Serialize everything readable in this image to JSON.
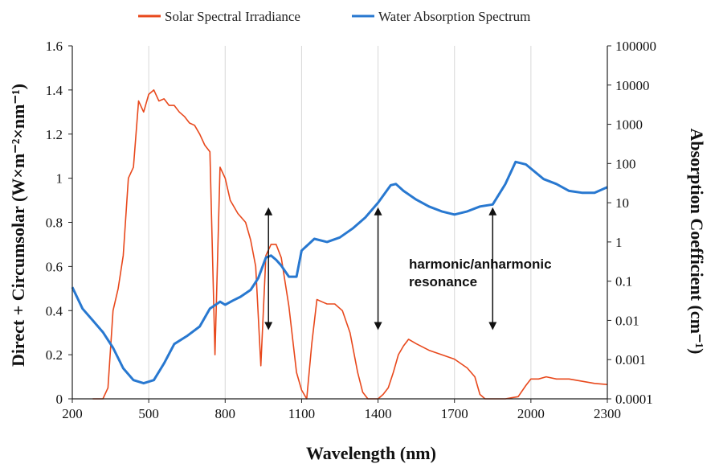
{
  "chart_data": {
    "type": "line",
    "xlabel": "Wavelength (nm)",
    "ylabel_left": "Direct + Circumsolar (W×m⁻²×nm⁻¹)",
    "ylabel_right": "Absorption Coefficient (cm⁻¹)",
    "xlim": [
      200,
      2300
    ],
    "ylim_left": [
      0,
      1.6
    ],
    "ylim_right": [
      0.0001,
      100000
    ],
    "yscale_right": "log",
    "x_ticks": [
      "200",
      "500",
      "800",
      "1100",
      "1400",
      "1700",
      "2000",
      "2300"
    ],
    "y_left_ticks": [
      "0",
      "0.2",
      "0.4",
      "0.6",
      "0.8",
      "1",
      "1.2",
      "1.4",
      "1.6"
    ],
    "y_right_ticks": [
      "0.0001",
      "0.001",
      "0.01",
      "0.1",
      "1",
      "10",
      "100",
      "1000",
      "10000",
      "100000"
    ],
    "legend_position": "top",
    "grid": "vertical",
    "colors": {
      "solar": "#E8481C",
      "water": "#2878D0",
      "grid": "#d8d8d8"
    },
    "series": [
      {
        "name": "Solar Spectral Irradiance",
        "axis": "left",
        "x": [
          280,
          300,
          320,
          340,
          360,
          380,
          400,
          420,
          440,
          460,
          480,
          500,
          520,
          540,
          560,
          580,
          600,
          620,
          640,
          660,
          680,
          700,
          720,
          740,
          760,
          780,
          800,
          820,
          850,
          880,
          900,
          920,
          940,
          960,
          980,
          1000,
          1020,
          1050,
          1080,
          1100,
          1120,
          1140,
          1160,
          1180,
          1200,
          1230,
          1260,
          1290,
          1320,
          1340,
          1360,
          1380,
          1400,
          1420,
          1440,
          1460,
          1480,
          1500,
          1520,
          1550,
          1600,
          1650,
          1700,
          1750,
          1780,
          1800,
          1820,
          1850,
          1900,
          1950,
          1980,
          2000,
          2030,
          2060,
          2100,
          2150,
          2200,
          2250,
          2300
        ],
        "y": [
          0,
          0,
          0,
          0.05,
          0.4,
          0.5,
          0.65,
          1.0,
          1.05,
          1.35,
          1.3,
          1.38,
          1.4,
          1.35,
          1.36,
          1.33,
          1.33,
          1.3,
          1.28,
          1.25,
          1.24,
          1.2,
          1.15,
          1.12,
          0.2,
          1.05,
          1.0,
          0.9,
          0.84,
          0.8,
          0.72,
          0.6,
          0.15,
          0.65,
          0.7,
          0.7,
          0.64,
          0.42,
          0.12,
          0.04,
          0.0,
          0.25,
          0.45,
          0.44,
          0.43,
          0.43,
          0.4,
          0.3,
          0.12,
          0.03,
          0.0,
          0.0,
          0.0,
          0.02,
          0.05,
          0.12,
          0.2,
          0.24,
          0.27,
          0.25,
          0.22,
          0.2,
          0.18,
          0.14,
          0.1,
          0.02,
          0.0,
          0.0,
          0.0,
          0.01,
          0.06,
          0.09,
          0.09,
          0.1,
          0.09,
          0.09,
          0.08,
          0.07,
          0.065
        ]
      },
      {
        "name": "Water Absorption Spectrum",
        "axis": "right",
        "x": [
          200,
          240,
          280,
          320,
          360,
          400,
          440,
          480,
          520,
          560,
          600,
          650,
          700,
          740,
          780,
          800,
          830,
          860,
          900,
          930,
          960,
          980,
          1000,
          1020,
          1050,
          1080,
          1100,
          1150,
          1200,
          1250,
          1300,
          1350,
          1400,
          1450,
          1470,
          1500,
          1550,
          1600,
          1650,
          1700,
          1750,
          1800,
          1850,
          1900,
          1940,
          1980,
          2050,
          2100,
          2150,
          2200,
          2250,
          2300
        ],
        "y": [
          0.07,
          0.02,
          0.01,
          0.005,
          0.002,
          0.0006,
          0.0003,
          0.00025,
          0.0003,
          0.0008,
          0.0025,
          0.004,
          0.007,
          0.02,
          0.03,
          0.025,
          0.032,
          0.04,
          0.06,
          0.12,
          0.4,
          0.45,
          0.35,
          0.25,
          0.13,
          0.13,
          0.6,
          1.2,
          1.0,
          1.3,
          2.2,
          4.2,
          10,
          28,
          30,
          20,
          12,
          8,
          6,
          5,
          6,
          8,
          9,
          30,
          110,
          95,
          40,
          30,
          20,
          18,
          18,
          25
        ]
      }
    ],
    "annotations": [
      {
        "text": "harmonic/anharmonic",
        "line": 1
      },
      {
        "text": "resonance",
        "line": 2
      }
    ],
    "arrows": [
      {
        "x": 970,
        "y_top": 0.85,
        "y_bottom": 0.33
      },
      {
        "x": 1400,
        "y_top": 0.85,
        "y_bottom": 0.33
      },
      {
        "x": 1850,
        "y_top": 0.85,
        "y_bottom": 0.33
      }
    ]
  }
}
